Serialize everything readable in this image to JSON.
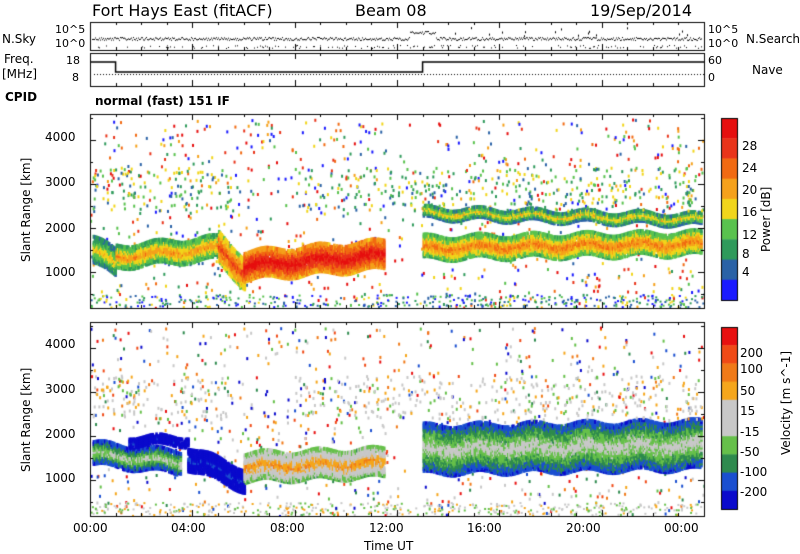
{
  "header": {
    "station": "Fort Hays East (fitACF)",
    "beam": "Beam 08",
    "date": "19/Sep/2014"
  },
  "summary": {
    "nsky_label": "N.Sky",
    "nsearch_label": "N.Search",
    "freq_label_1": "Freq.",
    "freq_label_2": "[MHz]",
    "cpid_label": "CPID",
    "nave_label": "Nave",
    "nsky_ticks": [
      "10^5",
      "10^0"
    ],
    "nsearch_ticks": [
      "10^5",
      "10^0"
    ],
    "freq_ticks": [
      "18",
      "8"
    ],
    "nave_ticks": [
      "60",
      "0"
    ],
    "cpid_text": "normal (fast) 151 IF"
  },
  "colors": {
    "power": [
      "#1a1aff",
      "#2a62a6",
      "#2f9a5b",
      "#59c24e",
      "#f1d51b",
      "#f5a11b",
      "#f16a12",
      "#e9341a",
      "#e60f0f"
    ],
    "velocity": [
      "#0a0acc",
      "#1a4fd0",
      "#2e8a4e",
      "#66c04a",
      "#c8c8c8",
      "#c8c8c8",
      "#f5a61c",
      "#f07a18",
      "#f04a16",
      "#e81010"
    ]
  },
  "chart_data": [
    {
      "type": "heatmap",
      "title": "",
      "ylabel": "Slant Range [km]",
      "xlabel": "",
      "xlim": [
        "00:00",
        "24:00"
      ],
      "ylim": [
        180,
        4600
      ],
      "x_ticks": [
        "00:00",
        "04:00",
        "08:00",
        "12:00",
        "16:00",
        "20:00",
        "00:00"
      ],
      "y_ticks": [
        1000,
        2000,
        3000,
        4000
      ],
      "colorbar": {
        "label": "Power [dB]",
        "range": [
          0,
          32
        ],
        "ticks": [
          4,
          8,
          12,
          16,
          20,
          24,
          28
        ]
      },
      "bands": [
        {
          "from_hour": 0.1,
          "to_hour": 1.0,
          "center_km": [
            1500,
            1200
          ],
          "width_km": 600,
          "level": 0.55
        },
        {
          "from_hour": 1.0,
          "to_hour": 5.0,
          "center_km": [
            1350,
            1550
          ],
          "width_km": 500,
          "level": 0.65
        },
        {
          "from_hour": 5.0,
          "to_hour": 6.0,
          "center_km": [
            1550,
            1000
          ],
          "width_km": 700,
          "level": 0.8
        },
        {
          "from_hour": 6.0,
          "to_hour": 11.5,
          "center_km": [
            1150,
            1400
          ],
          "width_km": 650,
          "level": 0.95
        },
        {
          "from_hour": 13.0,
          "to_hour": 23.9,
          "center_km": [
            1550,
            1650
          ],
          "width_km": 500,
          "level": 0.7
        },
        {
          "from_hour": 13.0,
          "to_hour": 23.9,
          "center_km": [
            2350,
            2200
          ],
          "width_km": 250,
          "level": 0.55
        }
      ]
    },
    {
      "type": "heatmap",
      "title": "",
      "ylabel": "Slant Range [km]",
      "xlabel": "Time UT",
      "xlim": [
        "00:00",
        "24:00"
      ],
      "ylim": [
        180,
        4600
      ],
      "x_ticks": [
        "00:00",
        "04:00",
        "08:00",
        "12:00",
        "16:00",
        "20:00",
        "00:00"
      ],
      "y_ticks": [
        1000,
        2000,
        3000,
        4000
      ],
      "colorbar": {
        "label": "Velocity [m s^-1]",
        "range": [
          -250,
          250
        ],
        "ticks": [
          200,
          100,
          50,
          15,
          -15,
          -50,
          -100,
          -200
        ]
      },
      "bands": [
        {
          "from_hour": 0.1,
          "to_hour": 3.5,
          "center_km": [
            1600,
            1400
          ],
          "width_km": 500,
          "level": 0.45
        },
        {
          "from_hour": 1.5,
          "to_hour": 3.8,
          "center_km": [
            1900,
            1900
          ],
          "width_km": 200,
          "level": 0.1
        },
        {
          "from_hour": 3.8,
          "to_hour": 6.0,
          "center_km": [
            1500,
            1000
          ],
          "width_km": 500,
          "level": 0.12
        },
        {
          "from_hour": 6.0,
          "to_hour": 11.5,
          "center_km": [
            1300,
            1400
          ],
          "width_km": 650,
          "level": 0.7
        },
        {
          "from_hour": 13.0,
          "to_hour": 23.9,
          "center_km": [
            1700,
            1800
          ],
          "width_km": 1100,
          "level": 0.47
        }
      ]
    }
  ]
}
